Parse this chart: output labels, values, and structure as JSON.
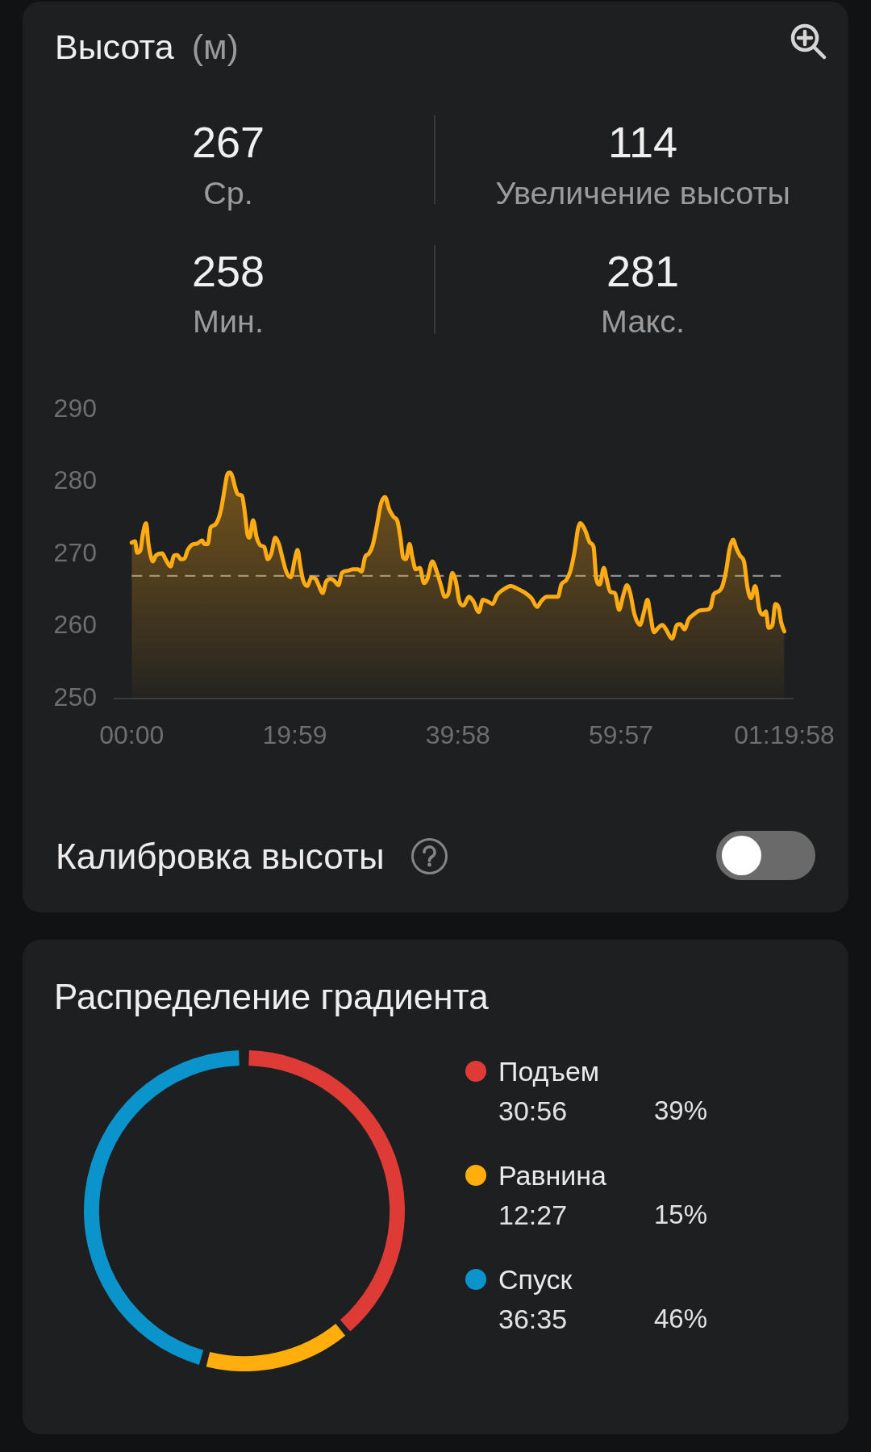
{
  "chart_data": [
    {
      "type": "area",
      "title": "Высота",
      "subtitle": "(м)",
      "annotations": [
        "267",
        "Ср.",
        "114",
        "Увеличение высоты",
        "258",
        "Мин.",
        "281",
        "Макс.",
        "Калибровка высоты"
      ],
      "x": [
        0,
        0.41,
        0.68,
        1.09,
        1.36,
        1.77,
        2.04,
        2.28,
        2.62,
        2.96,
        3.75,
        4.15,
        4.77,
        5.18,
        5.58,
        6.03,
        6.47,
        6.88,
        7.39,
        8.07,
        8.65,
        8.92,
        9.33,
        9.67,
        10.11,
        10.56,
        10.96,
        11.37,
        11.71,
        12.05,
        12.33,
        12.67,
        13.01,
        13.52,
        13.86,
        14.2,
        14.44,
        14.88,
        15.32,
        15.8,
        16.24,
        16.68,
        17.09,
        17.6,
        18.05,
        18.45,
        18.97,
        19.48,
        19.99,
        20.33,
        20.67,
        21.01,
        21.52,
        22.03,
        22.54,
        22.95,
        23.39,
        23.83,
        24.41,
        24.92,
        25.33,
        25.77,
        26.46,
        27.14,
        27.72,
        28.16,
        28.6,
        29.08,
        29.52,
        30.03,
        30.54,
        31.05,
        31.56,
        32.07,
        32.58,
        32.93,
        33.27,
        33.61,
        34.05,
        34.39,
        34.8,
        35.31,
        35.82,
        36.23,
        36.84,
        37.35,
        37.86,
        38.37,
        38.82,
        39.29,
        39.73,
        40.14,
        40.65,
        41.33,
        41.85,
        42.53,
        43.04,
        43.55,
        44.23,
        44.74,
        45.42,
        46.44,
        47.46,
        48.14,
        48.99,
        49.68,
        50.19,
        50.87,
        51.55,
        52.23,
        52.64,
        53.25,
        53.76,
        54.27,
        54.68,
        54.96,
        55.3,
        55.64,
        56.15,
        56.59,
        56.93,
        57.34,
        57.85,
        58.19,
        58.63,
        59.22,
        59.72,
        60.23,
        60.68,
        61.09,
        61.6,
        62.28,
        62.79,
        63.2,
        63.54,
        64,
        64.51,
        65.02,
        65.46,
        66.21,
        66.82,
        67.23,
        67.73,
        68.25,
        68.93,
        69.6,
        70.45,
        70.96,
        71.3,
        71.81,
        72.32,
        72.83,
        73.27,
        73.68,
        74.09,
        74.53,
        75.04,
        75.45,
        75.89,
        76.4,
        76.91,
        77.36,
        77.7,
        78.04,
        78.51,
        78.86,
        79.3,
        79.57,
        79.97
      ],
      "values": [
        271.6,
        271.8,
        270.2,
        270.6,
        272.7,
        274.3,
        271.6,
        270.0,
        269.0,
        269.8,
        270.1,
        269.3,
        268.3,
        269.8,
        269.9,
        269.3,
        269.4,
        270.6,
        271.3,
        271.5,
        271.9,
        271.4,
        271.4,
        273.7,
        274.0,
        274.7,
        276.2,
        278.9,
        281.0,
        281.3,
        280.8,
        279.3,
        278.3,
        278.1,
        275.8,
        272.7,
        272.3,
        274.7,
        272.3,
        271.2,
        271.0,
        269.3,
        270.0,
        272.3,
        271.4,
        269.6,
        267.5,
        266.8,
        269.3,
        270.6,
        268.3,
        266.4,
        265.6,
        266.8,
        266.6,
        265.6,
        264.6,
        266.2,
        266.6,
        266.2,
        265.7,
        267.4,
        267.7,
        267.9,
        267.9,
        267.6,
        269.6,
        270.1,
        271.2,
        273.9,
        277.0,
        277.9,
        276.2,
        275.2,
        274.5,
        272.3,
        269.5,
        269.3,
        271.4,
        269.6,
        267.9,
        268.1,
        266.0,
        266.6,
        269.0,
        267.7,
        265.8,
        264.1,
        264.6,
        267.4,
        266.2,
        263.5,
        262.9,
        264.1,
        263.5,
        262.0,
        263.7,
        263.5,
        263.1,
        264.3,
        265.0,
        265.6,
        265.1,
        264.7,
        263.9,
        262.7,
        263.5,
        264.1,
        264.1,
        264.1,
        265.8,
        266.4,
        267.7,
        270.4,
        273.5,
        274.3,
        273.9,
        273.1,
        271.6,
        271.0,
        266.6,
        265.8,
        268.1,
        266.6,
        264.8,
        264.6,
        262.3,
        264.3,
        265.7,
        264.6,
        261.7,
        260.2,
        262.1,
        263.7,
        261.7,
        259.2,
        259.8,
        260.2,
        259.6,
        258.3,
        260.2,
        260.3,
        259.6,
        261.0,
        261.7,
        262.2,
        262.3,
        262.7,
        264.4,
        264.8,
        265.4,
        267.7,
        270.8,
        272.0,
        270.8,
        269.8,
        268.9,
        265.4,
        263.9,
        265.6,
        262.3,
        261.6,
        262.1,
        259.8,
        260.2,
        263.1,
        262.5,
        260.6,
        259.3
      ],
      "color": "#ffab13",
      "marker": "none",
      "line_style": "solid",
      "xlim": [
        -2.1,
        81
      ],
      "xticks": [
        {
          "value": 0,
          "label": "00:00"
        },
        {
          "value": 19.983,
          "label": "19:59"
        },
        {
          "value": 39.967,
          "label": "39:58"
        },
        {
          "value": 59.95,
          "label": "59:57"
        },
        {
          "value": 79.967,
          "label": "01:19:58"
        }
      ],
      "ylim": [
        250,
        290
      ],
      "yticks": [
        250,
        260,
        270,
        280,
        290
      ],
      "ref_lines": [
        {
          "axis": "y",
          "value": 267,
          "line_style": "dashed",
          "color": "#8c8c8c"
        }
      ]
    },
    {
      "type": "donut",
      "title": "Распределение градиента",
      "categories": [
        "Подъем",
        "Равнина",
        "Спуск"
      ],
      "values": [
        39,
        15,
        46
      ],
      "colors": [
        "#df3b36",
        "#ffae0b",
        "#0b93cb"
      ],
      "annotations": [
        "30:56",
        "39%",
        "12:27",
        "15%",
        "36:35",
        "46%"
      ],
      "legend": "right"
    }
  ]
}
